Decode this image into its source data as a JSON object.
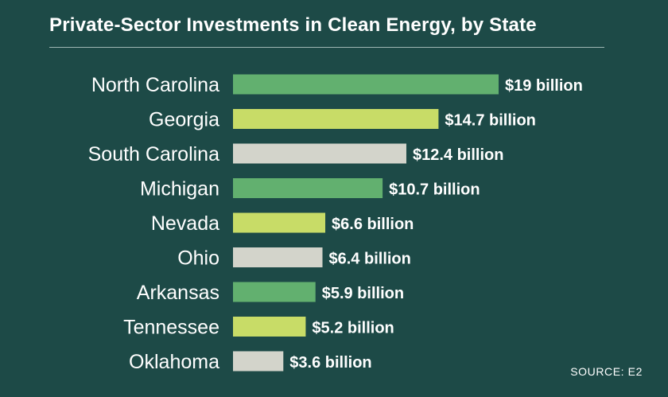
{
  "title": "Private-Sector Investments in Clean Energy, by State",
  "source": "SOURCE: E2",
  "colors": {
    "background": "#1d4a47",
    "green": "#62b06f",
    "lime": "#c8dc67",
    "gray": "#d3d4cb",
    "text": "#ffffff"
  },
  "chart_data": {
    "type": "bar",
    "orientation": "horizontal",
    "title": "Private-Sector Investments in Clean Energy, by State",
    "xlabel": "",
    "ylabel": "",
    "unit": "billion USD",
    "categories": [
      "North Carolina",
      "Georgia",
      "South Carolina",
      "Michigan",
      "Nevada",
      "Ohio",
      "Arkansas",
      "Tennessee",
      "Oklahoma"
    ],
    "values": [
      19,
      14.7,
      12.4,
      10.7,
      6.6,
      6.4,
      5.9,
      5.2,
      3.6
    ],
    "labels": [
      "$19 billion",
      "$14.7 billion",
      "$12.4 billion",
      "$10.7 billion",
      "$6.6 billion",
      "$6.4 billion",
      "$5.9 billion",
      "$5.2 billion",
      "$3.6 billion"
    ],
    "bar_colors": [
      "green",
      "lime",
      "gray",
      "green",
      "lime",
      "gray",
      "green",
      "lime",
      "gray"
    ],
    "xlim": [
      0,
      19
    ],
    "grid": false,
    "legend": "none"
  }
}
